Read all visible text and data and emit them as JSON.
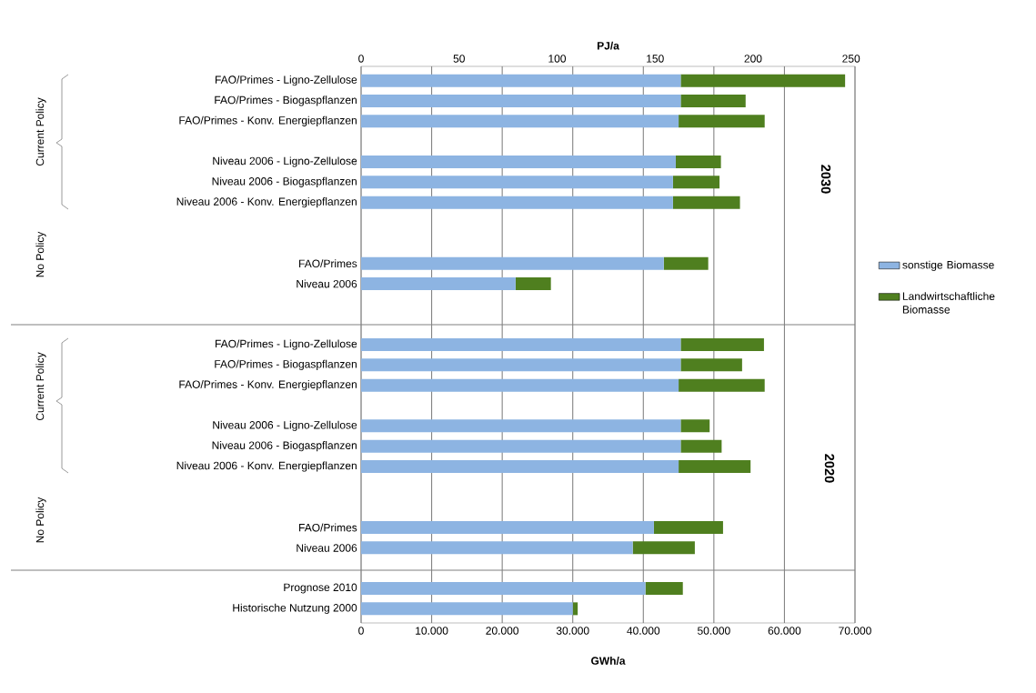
{
  "chart_data": {
    "type": "bar",
    "orientation": "horizontal",
    "stacked": true,
    "xlabel": "GWh/a",
    "x2label": "PJ/a",
    "categories": [
      "FAO/Primes - Ligno-Zellulose",
      "FAO/Primes - Biogaspflanzen",
      "FAO/Primes - Konv. Energiepflanzen",
      null,
      "Niveau 2006 - Ligno-Zellulose",
      "Niveau 2006 - Biogaspflanzen",
      "Niveau 2006 - Konv. Energiepflanzen",
      null,
      null,
      "FAO/Primes",
      "Niveau 2006",
      null,
      null,
      "FAO/Primes - Ligno-Zellulose",
      "FAO/Primes - Biogaspflanzen",
      "FAO/Primes - Konv. Energiepflanzen",
      null,
      "Niveau 2006 - Ligno-Zellulose",
      "Niveau 2006 - Biogaspflanzen",
      "Niveau 2006 - Konv. Energiepflanzen",
      null,
      null,
      "FAO/Primes",
      "Niveau 2006",
      null,
      "Prognose 2010",
      "Historische Nutzung 2000"
    ],
    "series": [
      {
        "name": "sonstige Biomasse",
        "color": "#8db4e2",
        "values": [
          45300,
          45300,
          45000,
          null,
          44600,
          44200,
          44200,
          null,
          null,
          42900,
          21900,
          null,
          null,
          45300,
          45300,
          45000,
          null,
          45300,
          45300,
          45000,
          null,
          null,
          41500,
          38500,
          null,
          40300,
          30000
        ]
      },
      {
        "name": "Landwirtschaftliche Biomasse",
        "color": "#4f7f1f",
        "values": [
          23300,
          9200,
          12200,
          null,
          6400,
          6600,
          9500,
          null,
          null,
          6300,
          5000,
          null,
          null,
          11800,
          8700,
          12200,
          null,
          4100,
          5800,
          10200,
          null,
          null,
          9800,
          8800,
          null,
          5300,
          700
        ]
      }
    ],
    "xlim": [
      0,
      70000
    ],
    "xticks": [
      0,
      {
        "value": 10000,
        "label": "10.000"
      },
      {
        "value": 20000,
        "label": "20.000"
      },
      {
        "value": 30000,
        "label": "30.000"
      },
      {
        "value": 40000,
        "label": "40.000"
      },
      {
        "value": 50000,
        "label": "50.000"
      },
      {
        "value": 60000,
        "label": "60.000"
      },
      {
        "value": 70000,
        "label": "70.000"
      }
    ],
    "x2lim": [
      0,
      252
    ],
    "x2ticks": [
      0,
      50,
      100,
      150,
      200,
      250
    ],
    "grid": "x",
    "legend": "right",
    "annotations": [
      "Current Policy",
      "No Policy",
      "2030",
      "Current Policy",
      "No Policy",
      "2020"
    ]
  }
}
